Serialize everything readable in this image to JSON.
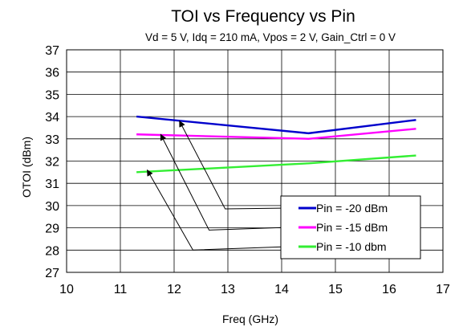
{
  "chart_data": {
    "type": "line",
    "title": "TOI vs Frequency vs Pin",
    "subtitle": "Vd = 5 V, Idq = 210 mA, Vpos = 2 V, Gain_Ctrl  = 0 V",
    "xlabel": "Freq (GHz)",
    "ylabel": "OTOI (dBm)",
    "xlim": [
      10,
      17
    ],
    "ylim": [
      27,
      37
    ],
    "xticks": [
      "10",
      "11",
      "12",
      "13",
      "14",
      "15",
      "16",
      "17"
    ],
    "yticks": [
      "27",
      "28",
      "29",
      "30",
      "31",
      "32",
      "33",
      "34",
      "35",
      "36",
      "37"
    ],
    "grid": true,
    "legend_position": "bottom-right",
    "series": [
      {
        "name": "Pin = -20 dBm",
        "color": "#0000CC",
        "x": [
          11.3,
          14.5,
          16.5
        ],
        "y": [
          34.0,
          33.25,
          33.85
        ]
      },
      {
        "name": "Pin = -15 dBm",
        "color": "#FF00FF",
        "x": [
          11.3,
          14.5,
          16.5
        ],
        "y": [
          33.2,
          33.0,
          33.45
        ]
      },
      {
        "name": "Pin = -10 dbm",
        "color": "#33EE33",
        "x": [
          11.3,
          14.5,
          16.5
        ],
        "y": [
          31.5,
          31.9,
          32.25
        ]
      }
    ],
    "annotations": [
      {
        "series": 0,
        "target": [
          12.1,
          33.8
        ],
        "via": [
          12.95,
          29.85
        ]
      },
      {
        "series": 1,
        "target": [
          11.75,
          33.2
        ],
        "via": [
          12.65,
          28.9
        ]
      },
      {
        "series": 2,
        "target": [
          11.5,
          31.6
        ],
        "via": [
          12.35,
          28.0
        ]
      }
    ]
  }
}
